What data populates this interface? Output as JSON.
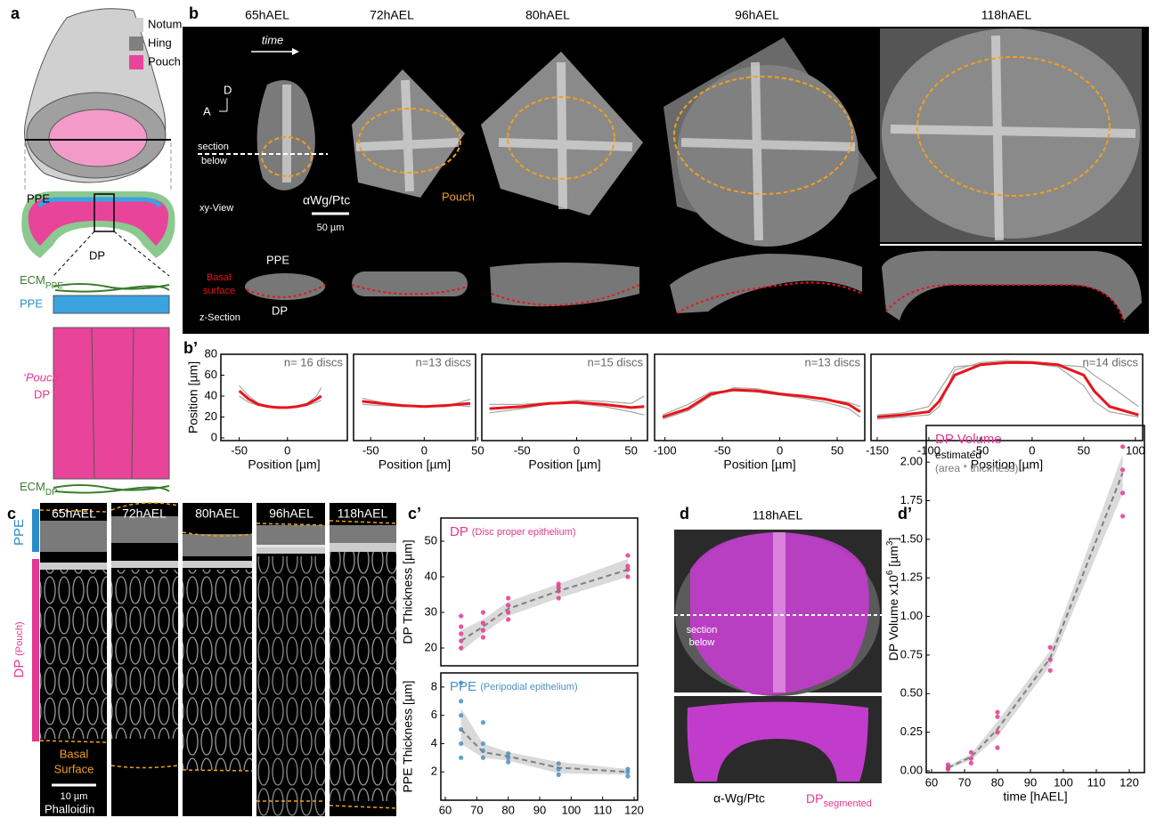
{
  "panel_labels": {
    "a": "a",
    "b": "b",
    "b2": "b’",
    "c": "c",
    "c2": "c’",
    "d": "d",
    "d2": "d’"
  },
  "a": {
    "legend": [
      "Notum",
      "Hing",
      "Pouch"
    ],
    "ppe": "PPE",
    "dp": "DP",
    "ecm_ppe": [
      "ECM",
      "PPE"
    ],
    "ppe2": "PPE",
    "pouch": "‘Pouch’",
    "dp2": "DP",
    "ecm_dp": [
      "ECM",
      "DP"
    ]
  },
  "b": {
    "times": [
      "65hAEL",
      "72hAEL",
      "80hAEL",
      "96hAEL",
      "118hAEL"
    ],
    "time": "time",
    "d": "D",
    "a": "A",
    "section": [
      "section",
      "below"
    ],
    "pouch": "Pouch",
    "stain": "αWg/Ptc",
    "scale": "50 µm",
    "xy": "xy-View",
    "ppe": "PPE",
    "basal": [
      "Basal",
      "surface"
    ],
    "dp": "DP",
    "z": "z-Section"
  },
  "c": {
    "times": [
      "65hAEL",
      "72hAEL",
      "80hAEL",
      "96hAEL",
      "118hAEL"
    ],
    "ppe": "PPE",
    "dp": "DP",
    "pouch": "(Pouch)",
    "basal": [
      "Basal",
      "Surface"
    ],
    "scale": "10 µm",
    "stain": "Phalloidin"
  },
  "d": {
    "time": "118hAEL",
    "section": [
      "section",
      "below"
    ],
    "stain": "α-Wg/Ptc",
    "dp": [
      "DP",
      "segmented"
    ]
  },
  "chart_data": [
    {
      "type": "line",
      "x": [
        -50,
        -40,
        -30,
        -20,
        -10,
        0,
        10,
        20,
        30,
        35
      ],
      "series": [
        {
          "color": "#a6a6a6",
          "values": [
            50,
            40,
            33,
            30,
            29,
            29,
            30,
            33,
            40,
            48
          ]
        },
        {
          "color": "#a6a6a6",
          "values": [
            40,
            34,
            31,
            30,
            30,
            29,
            30,
            31,
            34,
            36
          ]
        },
        {
          "color": "#e8141b",
          "values": [
            45,
            37,
            32,
            30,
            29,
            29,
            30,
            32,
            37,
            40
          ]
        }
      ],
      "xlim": [
        -69,
        62
      ],
      "ylim": [
        0,
        80
      ],
      "xticks": [
        -50,
        0
      ],
      "yticks": [
        0,
        20,
        40,
        60,
        80
      ],
      "x_label": "Position [µm]",
      "y_label": "Position [µm]",
      "annotation": "n= 16 discs"
    },
    {
      "type": "line",
      "x": [
        -58,
        -40,
        -20,
        0,
        20,
        43
      ],
      "series": [
        {
          "color": "#a6a6a6",
          "values": [
            38,
            34,
            31,
            30,
            30,
            37
          ]
        },
        {
          "color": "#a6a6a6",
          "values": [
            32,
            31,
            30,
            30,
            32,
            30
          ]
        },
        {
          "color": "#e8141b",
          "values": [
            35,
            33,
            31,
            30,
            31,
            33
          ]
        }
      ],
      "xlim": [
        -66,
        48
      ],
      "ylim": [
        0,
        80
      ],
      "xticks": [
        -50,
        0,
        50
      ],
      "x_label": "Position [µm]",
      "annotation": "n=13 discs"
    },
    {
      "type": "line",
      "x": [
        -80,
        -50,
        -25,
        0,
        25,
        50,
        62
      ],
      "series": [
        {
          "color": "#a6a6a6",
          "values": [
            24,
            28,
            33,
            36,
            35,
            33,
            40
          ]
        },
        {
          "color": "#a6a6a6",
          "values": [
            32,
            32,
            34,
            33,
            30,
            25,
            22
          ]
        },
        {
          "color": "#e8141b",
          "values": [
            28,
            30,
            33,
            34,
            32,
            29,
            30
          ]
        }
      ],
      "xlim": [
        -87,
        65
      ],
      "ylim": [
        0,
        80
      ],
      "xticks": [
        -50,
        0,
        50
      ],
      "x_label": "Position [µm]",
      "annotation": "n=15 discs"
    },
    {
      "type": "line",
      "x": [
        -102,
        -80,
        -60,
        -40,
        -20,
        0,
        20,
        40,
        60,
        70
      ],
      "series": [
        {
          "color": "#a6a6a6",
          "values": [
            18,
            26,
            40,
            48,
            47,
            43,
            40,
            37,
            34,
            30
          ]
        },
        {
          "color": "#a6a6a6",
          "values": [
            22,
            32,
            44,
            45,
            44,
            41,
            38,
            34,
            28,
            20
          ]
        },
        {
          "color": "#e8141b",
          "values": [
            20,
            28,
            42,
            46,
            45,
            42,
            40,
            37,
            32,
            25
          ]
        }
      ],
      "xlim": [
        -109,
        74
      ],
      "ylim": [
        0,
        80
      ],
      "xticks": [
        -100,
        -50,
        0,
        50
      ],
      "x_label": "Position [µm]",
      "annotation": "n=13 discs"
    },
    {
      "type": "line",
      "x": [
        -150,
        -125,
        -100,
        -90,
        -75,
        -50,
        -25,
        0,
        25,
        50,
        60,
        75,
        103
      ],
      "series": [
        {
          "color": "#a6a6a6",
          "values": [
            18,
            20,
            22,
            30,
            65,
            72,
            74,
            73,
            70,
            68,
            60,
            50,
            30
          ]
        },
        {
          "color": "#a6a6a6",
          "values": [
            22,
            24,
            30,
            45,
            68,
            70,
            72,
            71,
            68,
            50,
            35,
            25,
            20
          ]
        },
        {
          "color": "#e8141b",
          "values": [
            20,
            22,
            25,
            35,
            60,
            70,
            72,
            72,
            70,
            60,
            45,
            30,
            22
          ]
        }
      ],
      "xlim": [
        -156,
        107
      ],
      "ylim": [
        0,
        80
      ],
      "xticks": [
        -150,
        -100,
        -50,
        0,
        50,
        100
      ],
      "x_label": "Position [µm]",
      "annotation": "n=14 discs"
    },
    {
      "type": "scatter",
      "title": "DP",
      "subtitle": "(Disc proper epithelium)",
      "series": [
        {
          "color": "#e5378f",
          "x": [
            65,
            65,
            65,
            65,
            65,
            72,
            72,
            72,
            72,
            80,
            80,
            80,
            80,
            96,
            96,
            96,
            96,
            118,
            118,
            118,
            118
          ],
          "values": [
            20,
            22,
            24,
            26,
            29,
            23,
            25,
            27,
            30,
            28,
            30,
            32,
            34,
            34,
            36,
            37,
            38,
            40,
            42,
            43,
            46
          ]
        }
      ],
      "trend": {
        "color": "#7f7f7f",
        "x": [
          65,
          72,
          80,
          96,
          118
        ],
        "values": [
          22,
          26,
          31,
          36,
          42
        ]
      },
      "band": {
        "x": [
          65,
          72,
          80,
          96,
          118
        ],
        "low": [
          19,
          24,
          29,
          34,
          40
        ],
        "high": [
          25,
          28,
          33,
          38,
          45
        ]
      },
      "xlim": [
        60,
        120
      ],
      "ylim": [
        15,
        55
      ],
      "yticks": [
        20,
        30,
        40,
        50
      ],
      "y_label": "DP Thickness [µm]"
    },
    {
      "type": "scatter",
      "title": "PPE",
      "subtitle": "(Peripodial epithelium)",
      "series": [
        {
          "color": "#4a90c8",
          "x": [
            65,
            65,
            65,
            65,
            65,
            65,
            72,
            72,
            72,
            72,
            80,
            80,
            80,
            96,
            96,
            96,
            118,
            118,
            118
          ],
          "values": [
            3,
            4,
            5,
            6,
            7,
            8.3,
            3,
            3.5,
            4,
            5.5,
            2.7,
            3,
            3.3,
            1.8,
            2.2,
            2.6,
            1.7,
            2,
            2.2
          ]
        }
      ],
      "trend": {
        "color": "#7f7f7f",
        "x": [
          65,
          72,
          80,
          96,
          118
        ],
        "values": [
          5,
          3.4,
          3.1,
          2.3,
          2
        ]
      },
      "band": {
        "x": [
          65,
          72,
          80,
          96,
          118
        ],
        "low": [
          4,
          3,
          2.8,
          1.9,
          1.8
        ],
        "high": [
          6.5,
          4,
          3.4,
          2.7,
          2.2
        ]
      },
      "xlim": [
        60,
        120
      ],
      "ylim": [
        0,
        9
      ],
      "xticks": [
        60,
        70,
        80,
        90,
        100,
        110,
        120
      ],
      "yticks": [
        2,
        4,
        6,
        8
      ],
      "x_label": "time [hAEL]",
      "y_label": "PPE Thickness [µm]"
    },
    {
      "type": "scatter",
      "title": "DP Volume",
      "annotations": [
        "estimated",
        "(area * thickness)"
      ],
      "series": [
        {
          "color": "#e5378f",
          "x": [
            65,
            65,
            65,
            72,
            72,
            72,
            80,
            80,
            80,
            80,
            96,
            96,
            96,
            118,
            118,
            118,
            118
          ],
          "values": [
            0.01,
            0.02,
            0.04,
            0.05,
            0.08,
            0.12,
            0.15,
            0.25,
            0.35,
            0.38,
            0.65,
            0.72,
            0.8,
            1.65,
            1.8,
            1.95,
            2.1
          ]
        }
      ],
      "trend": {
        "color": "#7f7f7f",
        "x": [
          65,
          72,
          80,
          96,
          118
        ],
        "values": [
          0.02,
          0.09,
          0.27,
          0.73,
          1.93
        ]
      },
      "band": {
        "x": [
          65,
          72,
          80,
          96,
          118
        ],
        "low": [
          0.01,
          0.07,
          0.22,
          0.68,
          1.8
        ],
        "high": [
          0.03,
          0.11,
          0.32,
          0.78,
          2.05
        ]
      },
      "xlim": [
        60,
        120
      ],
      "ylim": [
        0,
        2.22
      ],
      "xticks": [
        60,
        70,
        80,
        90,
        100,
        110,
        120
      ],
      "yticks": [
        {
          "value": 0,
          "label": "0.00"
        },
        {
          "value": 0.25,
          "label": "0.25"
        },
        {
          "value": 0.5,
          "label": "0.50"
        },
        {
          "value": 0.75,
          "label": "0.75"
        },
        {
          "value": 1,
          "label": "1.00"
        },
        {
          "value": 1.25,
          "label": "1.25"
        },
        {
          "value": 1.5,
          "label": "1.50"
        },
        {
          "value": 1.75,
          "label": "1.75"
        },
        {
          "value": 2,
          "label": "2.00"
        }
      ],
      "x_label": "time [hAEL]",
      "y_label": [
        "DP Volume x10",
        "6",
        " [µm",
        "3",
        "]"
      ]
    }
  ]
}
